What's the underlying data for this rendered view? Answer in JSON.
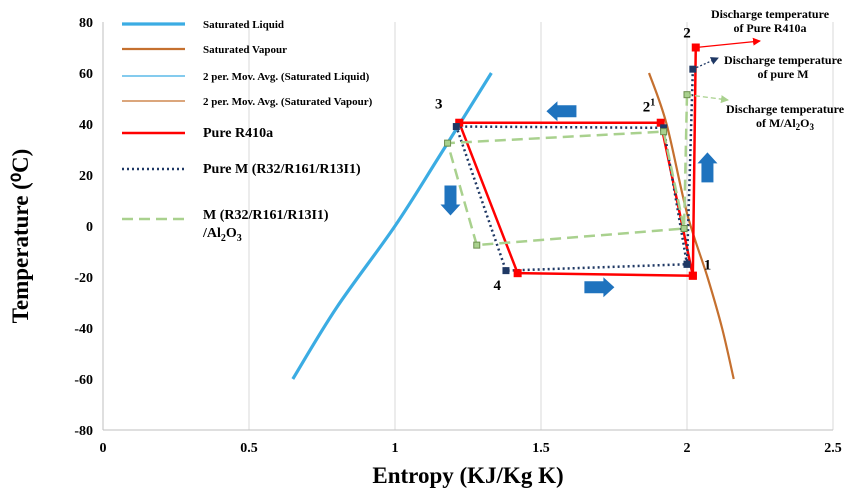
{
  "chart_data": {
    "type": "line",
    "xlabel": "Entropy (KJ/Kg K)",
    "ylabel": "Temperature (⁰C)",
    "xlim": [
      0,
      2.5
    ],
    "ylim": [
      -80,
      80
    ],
    "x_ticks": [
      "0",
      "0.5",
      "1",
      "1.5",
      "2",
      "2.5"
    ],
    "y_ticks": [
      "80",
      "60",
      "40",
      "20",
      "0",
      "-20",
      "-40",
      "-60",
      "-80"
    ],
    "grid": "vertical",
    "legend_position": "top-left",
    "colors": {
      "saturated_liquid": "#3BACE3",
      "saturated_vapour": "#C5702F",
      "pure_r410a": "#FF0000",
      "pure_m": "#1F3864",
      "m_al2o3": "#A9D18E",
      "arrow": "#1F73BE"
    },
    "series": [
      {
        "name": "Saturated Liquid",
        "style": "solid",
        "x": [
          0.65,
          0.8,
          1.0,
          1.15,
          1.33
        ],
        "y": [
          -60,
          -32,
          0,
          27,
          60
        ]
      },
      {
        "name": "Saturated Vapour",
        "style": "solid",
        "x": [
          1.87,
          1.93,
          2.0,
          2.07,
          2.12,
          2.16
        ],
        "y": [
          60,
          40,
          5,
          -20,
          -40,
          -60
        ]
      },
      {
        "name": "2 per. Mov. Avg. (Saturated Liquid)",
        "style": "thin",
        "x": [],
        "y": []
      },
      {
        "name": "2 per. Mov. Avg. (Saturated Vapour)",
        "style": "thin",
        "x": [],
        "y": []
      },
      {
        "name": "Pure R410a",
        "style": "solid",
        "x": [
          2.03,
          2.02,
          1.91,
          1.22,
          1.42,
          2.02
        ],
        "y": [
          70,
          -19.5,
          40.5,
          40.5,
          -18.5,
          -19.5
        ]
      },
      {
        "name": "Pure M (R32/R161/R13I1)",
        "style": "dotted",
        "x": [
          2.02,
          2.0,
          1.92,
          1.21,
          1.38,
          2.0
        ],
        "y": [
          61.5,
          -15,
          38.5,
          39,
          -17.5,
          -15
        ]
      },
      {
        "name": "M (R32/R161/R13I1) /Al₂O₃",
        "style": "dashed",
        "x": [
          2.0,
          1.99,
          1.92,
          1.18,
          1.28,
          1.99
        ],
        "y": [
          51.5,
          -1,
          37,
          32.5,
          -7.5,
          -1
        ]
      }
    ],
    "point_labels": [
      {
        "text": "1",
        "x": 2.07,
        "y": -17
      },
      {
        "text": "2",
        "x": 2.0,
        "y": 74
      },
      {
        "text": "21",
        "x": 1.87,
        "y": 45
      },
      {
        "text": "3",
        "x": 1.15,
        "y": 46
      },
      {
        "text": "4",
        "x": 1.35,
        "y": -25
      }
    ],
    "annotations": [
      {
        "lines": [
          "Discharge temperature",
          "of  Pure R410a"
        ]
      },
      {
        "lines": [
          "Discharge temperature",
          "of pure  M"
        ]
      },
      {
        "lines": [
          "Discharge temperature",
          "of M/Al2O3"
        ]
      }
    ],
    "arrows": [
      {
        "direction": "left",
        "x": 1.57,
        "y": 45
      },
      {
        "direction": "down",
        "x": 1.19,
        "y": 10
      },
      {
        "direction": "right",
        "x": 1.7,
        "y": -24
      },
      {
        "direction": "up",
        "x": 2.07,
        "y": 23
      }
    ]
  }
}
